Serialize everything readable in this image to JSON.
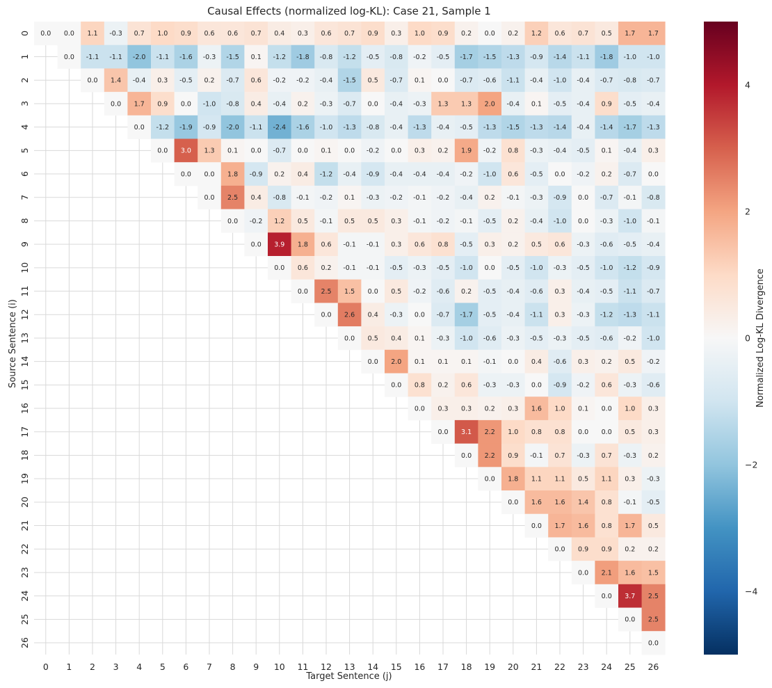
{
  "chart_data": {
    "type": "heatmap",
    "title": "Causal Effects (normalized log-KL): Case 21, Sample 1",
    "xlabel": "Target Sentence (j)",
    "ylabel": "Source Sentence (i)",
    "colorbar_label": "Normalized Log-KL Divergence",
    "colorbar_range": [
      -5,
      5
    ],
    "colorbar_ticks": [
      4,
      2,
      0,
      -2,
      -4
    ],
    "colorbar_tick_labels": [
      "4",
      "2",
      "0",
      "−2",
      "−4"
    ],
    "colormap": "RdBu_r",
    "mask": "lower-triangle (j < i) blank",
    "x_ticks": [
      "0",
      "1",
      "2",
      "3",
      "4",
      "5",
      "6",
      "7",
      "8",
      "9",
      "10",
      "11",
      "12",
      "13",
      "14",
      "15",
      "16",
      "17",
      "18",
      "19",
      "20",
      "21",
      "22",
      "23",
      "24",
      "25",
      "26"
    ],
    "y_ticks": [
      "0",
      "1",
      "2",
      "3",
      "4",
      "5",
      "6",
      "7",
      "8",
      "9",
      "10",
      "11",
      "12",
      "13",
      "14",
      "15",
      "16",
      "17",
      "18",
      "19",
      "20",
      "21",
      "22",
      "23",
      "24",
      "25",
      "26"
    ],
    "values": [
      [
        0.0,
        0.0,
        1.1,
        -0.3,
        0.7,
        1.0,
        0.9,
        0.6,
        0.6,
        0.7,
        0.4,
        0.3,
        0.6,
        0.7,
        0.9,
        0.3,
        1.0,
        0.9,
        0.2,
        0.0,
        0.2,
        1.2,
        0.6,
        0.7,
        0.5,
        1.7,
        1.7
      ],
      [
        null,
        0.0,
        -1.1,
        -1.1,
        -2.0,
        -1.1,
        -1.6,
        -0.3,
        -1.5,
        0.1,
        -1.2,
        -1.8,
        -0.8,
        -1.2,
        -0.5,
        -0.8,
        -0.2,
        -0.5,
        -1.7,
        -1.5,
        -1.3,
        -0.9,
        -1.4,
        -1.1,
        -1.8,
        -1.0,
        -1.0
      ],
      [
        null,
        null,
        0.0,
        1.4,
        -0.4,
        0.3,
        -0.5,
        0.2,
        -0.7,
        0.6,
        -0.2,
        -0.2,
        -0.4,
        -1.5,
        0.5,
        -0.7,
        0.1,
        -0.0,
        -0.7,
        -0.6,
        -1.1,
        -0.4,
        -1.0,
        -0.4,
        -0.7,
        -0.8,
        -0.7
      ],
      [
        null,
        null,
        null,
        0.0,
        1.7,
        0.9,
        0.0,
        -1.0,
        -0.8,
        0.4,
        -0.4,
        0.2,
        -0.3,
        -0.7,
        -0.0,
        -0.4,
        -0.3,
        1.3,
        1.3,
        2.0,
        -0.4,
        0.1,
        -0.5,
        -0.4,
        0.9,
        -0.5,
        -0.4
      ],
      [
        null,
        null,
        null,
        null,
        0.0,
        -1.2,
        -1.9,
        -0.9,
        -2.0,
        -1.1,
        -2.4,
        -1.6,
        -1.0,
        -1.3,
        -0.8,
        -0.4,
        -1.3,
        -0.4,
        -0.5,
        -1.3,
        -1.5,
        -1.3,
        -1.4,
        -0.4,
        -1.4,
        -1.7,
        -1.3
      ],
      [
        null,
        null,
        null,
        null,
        null,
        0.0,
        3.0,
        1.3,
        0.1,
        0.0,
        -0.7,
        -0.0,
        0.1,
        0.0,
        -0.2,
        -0.0,
        0.3,
        0.2,
        1.9,
        -0.2,
        0.8,
        -0.3,
        -0.4,
        -0.5,
        0.1,
        -0.4,
        0.3
      ],
      [
        null,
        null,
        null,
        null,
        null,
        null,
        0.0,
        0.0,
        1.8,
        -0.9,
        0.2,
        0.4,
        -1.2,
        -0.4,
        -0.9,
        -0.4,
        -0.4,
        -0.4,
        -0.2,
        -1.0,
        0.6,
        -0.5,
        0.0,
        -0.2,
        0.2,
        -0.7,
        0.0
      ],
      [
        null,
        null,
        null,
        null,
        null,
        null,
        null,
        0.0,
        2.5,
        0.4,
        -0.8,
        -0.1,
        -0.2,
        0.1,
        -0.3,
        -0.2,
        -0.1,
        -0.2,
        -0.4,
        0.2,
        -0.1,
        -0.3,
        -0.9,
        -0.0,
        -0.7,
        -0.1,
        -0.8
      ],
      [
        null,
        null,
        null,
        null,
        null,
        null,
        null,
        null,
        0.0,
        -0.2,
        1.2,
        0.5,
        -0.1,
        0.5,
        0.5,
        0.3,
        -0.1,
        -0.2,
        -0.1,
        -0.5,
        0.2,
        -0.4,
        -1.0,
        0.0,
        -0.3,
        -1.0,
        -0.1
      ],
      [
        null,
        null,
        null,
        null,
        null,
        null,
        null,
        null,
        null,
        0.0,
        3.9,
        1.8,
        0.6,
        -0.1,
        -0.1,
        0.3,
        0.6,
        0.8,
        -0.5,
        0.3,
        0.2,
        0.5,
        0.6,
        -0.3,
        -0.6,
        -0.5,
        -0.4
      ],
      [
        null,
        null,
        null,
        null,
        null,
        null,
        null,
        null,
        null,
        null,
        0.0,
        0.6,
        0.2,
        -0.1,
        -0.1,
        -0.5,
        -0.3,
        -0.5,
        -1.0,
        0.0,
        -0.5,
        -1.0,
        -0.3,
        -0.5,
        -1.0,
        -1.2,
        -0.9
      ],
      [
        null,
        null,
        null,
        null,
        null,
        null,
        null,
        null,
        null,
        null,
        null,
        0.0,
        2.5,
        1.5,
        0.0,
        0.5,
        -0.2,
        -0.6,
        0.2,
        -0.5,
        -0.4,
        -0.6,
        0.3,
        -0.4,
        -0.5,
        -1.1,
        -0.7
      ],
      [
        null,
        null,
        null,
        null,
        null,
        null,
        null,
        null,
        null,
        null,
        null,
        null,
        0.0,
        2.6,
        0.4,
        -0.3,
        0.0,
        -0.7,
        -1.7,
        -0.5,
        -0.4,
        -1.1,
        0.3,
        -0.3,
        -1.2,
        -1.3,
        -1.1
      ],
      [
        null,
        null,
        null,
        null,
        null,
        null,
        null,
        null,
        null,
        null,
        null,
        null,
        null,
        0.0,
        0.5,
        0.4,
        0.1,
        -0.3,
        -1.0,
        -0.6,
        -0.3,
        -0.5,
        -0.3,
        -0.5,
        -0.6,
        -0.2,
        -1.0
      ],
      [
        null,
        null,
        null,
        null,
        null,
        null,
        null,
        null,
        null,
        null,
        null,
        null,
        null,
        null,
        0.0,
        2.0,
        0.1,
        0.1,
        0.1,
        -0.1,
        0.0,
        0.4,
        -0.6,
        0.3,
        0.2,
        0.5,
        -0.2
      ],
      [
        null,
        null,
        null,
        null,
        null,
        null,
        null,
        null,
        null,
        null,
        null,
        null,
        null,
        null,
        null,
        0.0,
        0.8,
        0.2,
        0.6,
        -0.3,
        -0.3,
        -0.0,
        -0.9,
        -0.2,
        0.6,
        -0.3,
        -0.6
      ],
      [
        null,
        null,
        null,
        null,
        null,
        null,
        null,
        null,
        null,
        null,
        null,
        null,
        null,
        null,
        null,
        null,
        0.0,
        0.3,
        0.3,
        0.2,
        0.3,
        1.6,
        1.0,
        0.1,
        -0.0,
        1.0,
        0.3
      ],
      [
        null,
        null,
        null,
        null,
        null,
        null,
        null,
        null,
        null,
        null,
        null,
        null,
        null,
        null,
        null,
        null,
        null,
        0.0,
        3.1,
        2.2,
        1.0,
        0.8,
        0.8,
        -0.0,
        -0.0,
        0.5,
        0.3
      ],
      [
        null,
        null,
        null,
        null,
        null,
        null,
        null,
        null,
        null,
        null,
        null,
        null,
        null,
        null,
        null,
        null,
        null,
        null,
        0.0,
        2.2,
        0.9,
        -0.1,
        0.7,
        -0.3,
        0.7,
        -0.3,
        0.2
      ],
      [
        null,
        null,
        null,
        null,
        null,
        null,
        null,
        null,
        null,
        null,
        null,
        null,
        null,
        null,
        null,
        null,
        null,
        null,
        null,
        0.0,
        1.8,
        1.1,
        1.1,
        0.5,
        1.1,
        0.3,
        -0.3
      ],
      [
        null,
        null,
        null,
        null,
        null,
        null,
        null,
        null,
        null,
        null,
        null,
        null,
        null,
        null,
        null,
        null,
        null,
        null,
        null,
        null,
        0.0,
        1.6,
        1.6,
        1.4,
        0.8,
        -0.1,
        -0.5
      ],
      [
        null,
        null,
        null,
        null,
        null,
        null,
        null,
        null,
        null,
        null,
        null,
        null,
        null,
        null,
        null,
        null,
        null,
        null,
        null,
        null,
        null,
        0.0,
        1.7,
        1.6,
        0.8,
        1.7,
        0.5
      ],
      [
        null,
        null,
        null,
        null,
        null,
        null,
        null,
        null,
        null,
        null,
        null,
        null,
        null,
        null,
        null,
        null,
        null,
        null,
        null,
        null,
        null,
        null,
        0.0,
        0.9,
        0.9,
        0.2,
        0.2
      ],
      [
        null,
        null,
        null,
        null,
        null,
        null,
        null,
        null,
        null,
        null,
        null,
        null,
        null,
        null,
        null,
        null,
        null,
        null,
        null,
        null,
        null,
        null,
        null,
        0.0,
        2.1,
        1.6,
        1.5
      ],
      [
        null,
        null,
        null,
        null,
        null,
        null,
        null,
        null,
        null,
        null,
        null,
        null,
        null,
        null,
        null,
        null,
        null,
        null,
        null,
        null,
        null,
        null,
        null,
        null,
        0.0,
        3.7,
        2.5
      ],
      [
        null,
        null,
        null,
        null,
        null,
        null,
        null,
        null,
        null,
        null,
        null,
        null,
        null,
        null,
        null,
        null,
        null,
        null,
        null,
        null,
        null,
        null,
        null,
        null,
        null,
        0.0,
        2.5
      ],
      [
        null,
        null,
        null,
        null,
        null,
        null,
        null,
        null,
        null,
        null,
        null,
        null,
        null,
        null,
        null,
        null,
        null,
        null,
        null,
        null,
        null,
        null,
        null,
        null,
        null,
        null,
        0.0
      ]
    ]
  }
}
